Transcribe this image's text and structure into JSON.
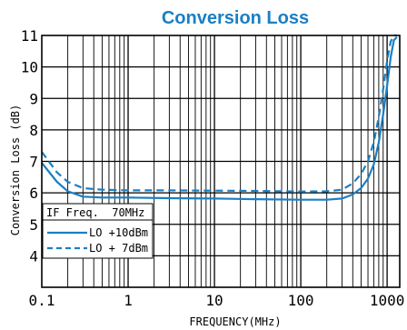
{
  "chart_data": {
    "type": "line",
    "title": "Conversion Loss",
    "xlabel": "FREQUENCY(MHz)",
    "ylabel": "Conversion Loss (dB)",
    "xscale": "log",
    "xlim": [
      0.1,
      1400
    ],
    "ylim": [
      3,
      11
    ],
    "x_tick_labels": [
      "0.1",
      "1",
      "10",
      "100",
      "1000"
    ],
    "x_tick_values": [
      0.1,
      1,
      10,
      100,
      1000
    ],
    "y_ticks": [
      4,
      5,
      6,
      7,
      8,
      9,
      10,
      11
    ],
    "grid": true,
    "line_color": "#1a7fc4",
    "legend": {
      "placement": "bottom-left",
      "header": "IF Freq.  70MHz",
      "entries": [
        {
          "label": "LO +10dBm",
          "style": "solid"
        },
        {
          "label": "LO + 7dBm",
          "style": "dashed"
        }
      ]
    },
    "series": [
      {
        "name": "LO +10dBm",
        "style": "solid",
        "x": [
          0.1,
          0.15,
          0.2,
          0.3,
          0.5,
          1,
          3,
          10,
          30,
          100,
          200,
          300,
          400,
          500,
          600,
          700,
          800,
          900,
          1000,
          1100,
          1200,
          1300
        ],
        "y": [
          6.95,
          6.35,
          6.05,
          5.88,
          5.85,
          5.85,
          5.83,
          5.82,
          5.8,
          5.78,
          5.78,
          5.82,
          5.95,
          6.15,
          6.45,
          6.9,
          7.6,
          8.5,
          9.4,
          10.3,
          10.85,
          10.95
        ]
      },
      {
        "name": "LO + 7dBm",
        "style": "dashed",
        "x": [
          0.1,
          0.15,
          0.2,
          0.3,
          0.5,
          1,
          3,
          10,
          30,
          100,
          200,
          300,
          400,
          500,
          600,
          700,
          800,
          900,
          1000,
          1100,
          1200,
          1300
        ],
        "y": [
          7.3,
          6.65,
          6.35,
          6.15,
          6.1,
          6.08,
          6.08,
          6.07,
          6.06,
          6.04,
          6.05,
          6.1,
          6.3,
          6.6,
          7.0,
          7.6,
          8.4,
          9.3,
          10.2,
          10.8,
          11.0,
          11.0
        ]
      }
    ]
  }
}
